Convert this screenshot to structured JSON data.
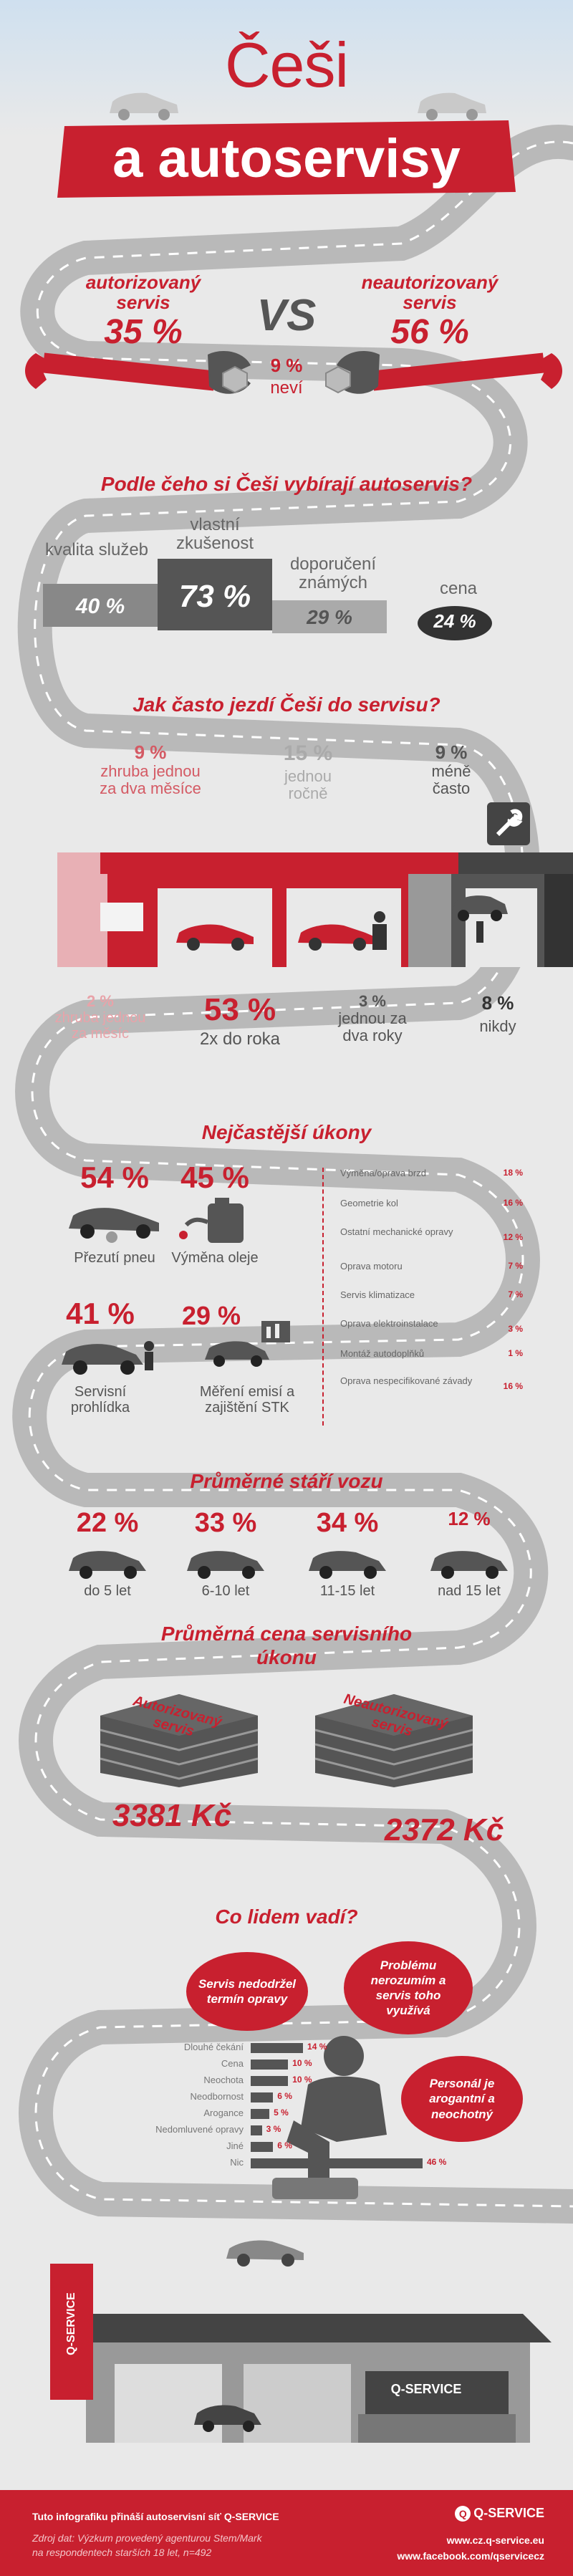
{
  "header": {
    "title_line1": "Češi",
    "title_line2": "a autoservisy"
  },
  "vs": {
    "left_label": "autorizovaný servis",
    "left_pct": "35 %",
    "vs": "VS",
    "right_label": "neautorizovaný servis",
    "right_pct": "56 %",
    "mid_pct": "9 %",
    "mid_label": "neví"
  },
  "choice": {
    "title": "Podle čeho si Češi vybírají autoservis?",
    "items": [
      {
        "label": "kvalita služeb",
        "pct": "40 %"
      },
      {
        "label": "vlastní zkušenost",
        "pct": "73 %"
      },
      {
        "label": "doporučení známých",
        "pct": "29 %"
      },
      {
        "label": "cena",
        "pct": "24 %"
      }
    ]
  },
  "frequency": {
    "title": "Jak často jezdí Češi do servisu?",
    "items": [
      {
        "pct": "9 %",
        "label": "zhruba jednou za dva měsíce"
      },
      {
        "pct": "15 %",
        "label": "jednou ročně"
      },
      {
        "pct": "9 %",
        "label": "méně často"
      },
      {
        "pct": "2 %",
        "label": "zhruba jednou za měsíc"
      },
      {
        "pct": "53 %",
        "label": "2x do roka"
      },
      {
        "pct": "3 %",
        "label": "jednou za dva roky"
      },
      {
        "pct": "8 %",
        "label": "nikdy"
      }
    ]
  },
  "tasks": {
    "title": "Nejčastější úkony",
    "big": [
      {
        "pct": "54 %",
        "label": "Přezutí pneu"
      },
      {
        "pct": "45 %",
        "label": "Výměna oleje"
      },
      {
        "pct": "41 %",
        "label": "Servisní prohlídka"
      },
      {
        "pct": "29 %",
        "label": "Měření emisí a zajištění STK"
      }
    ],
    "list": [
      {
        "label": "Výměna/oprava brzd",
        "pct": "18 %"
      },
      {
        "label": "Geometrie kol",
        "pct": "16 %"
      },
      {
        "label": "Ostatní mechanické opravy",
        "pct": "12 %"
      },
      {
        "label": "Oprava motoru",
        "pct": "7 %"
      },
      {
        "label": "Servis klimatizace",
        "pct": "7 %"
      },
      {
        "label": "Oprava elektroinstalace",
        "pct": "3 %"
      },
      {
        "label": "Montáž autodoplňků",
        "pct": "1 %"
      },
      {
        "label": "Oprava nespecifikované závady",
        "pct": "16 %"
      }
    ]
  },
  "age": {
    "title": "Průměrné stáří vozu",
    "items": [
      {
        "pct": "22 %",
        "label": "do 5 let"
      },
      {
        "pct": "33 %",
        "label": "6-10 let"
      },
      {
        "pct": "34 %",
        "label": "11-15 let"
      },
      {
        "pct": "12 %",
        "label": "nad 15 let"
      }
    ]
  },
  "price": {
    "title_line1": "Průměrná cena servisního",
    "title_line2": "úkonu",
    "left_label": "Autorizovaný servis",
    "left_value": "3381 Kč",
    "right_label": "Neautorizovaný servis",
    "right_value": "2372 Kč"
  },
  "complaints": {
    "title": "Co lidem vadí?",
    "bubbles": [
      "Servis nedodržel termín opravy",
      "Problému nerozumím a servis toho využívá",
      "Personál je arogantní a neochotný"
    ],
    "items": [
      {
        "label": "Dlouhé čekání",
        "pct": "14 %",
        "value": 14
      },
      {
        "label": "Cena",
        "pct": "10 %",
        "value": 10
      },
      {
        "label": "Neochota",
        "pct": "10 %",
        "value": 10
      },
      {
        "label": "Neodbornost",
        "pct": "6 %",
        "value": 6
      },
      {
        "label": "Arogance",
        "pct": "5 %",
        "value": 5
      },
      {
        "label": "Nedomluvené opravy",
        "pct": "3 %",
        "value": 3
      },
      {
        "label": "Jiné",
        "pct": "6 %",
        "value": 6
      },
      {
        "label": "Nic",
        "pct": "46 %",
        "value": 46
      }
    ]
  },
  "garage": {
    "sign_text": "Q-SERVICE",
    "side_sign": "Q-SERVICE"
  },
  "footer": {
    "line1": "Tuto infografiku přináší autoservisní síť Q-SERVICE",
    "line2": "Zdroj dat: Výzkum provedený agenturou Stem/Mark",
    "line3": "na respondentech starších 18 let, n=492",
    "logo": "Q-SERVICE",
    "url1": "www.cz.q-service.eu",
    "url2": "www.facebook.com/qservicecz"
  }
}
